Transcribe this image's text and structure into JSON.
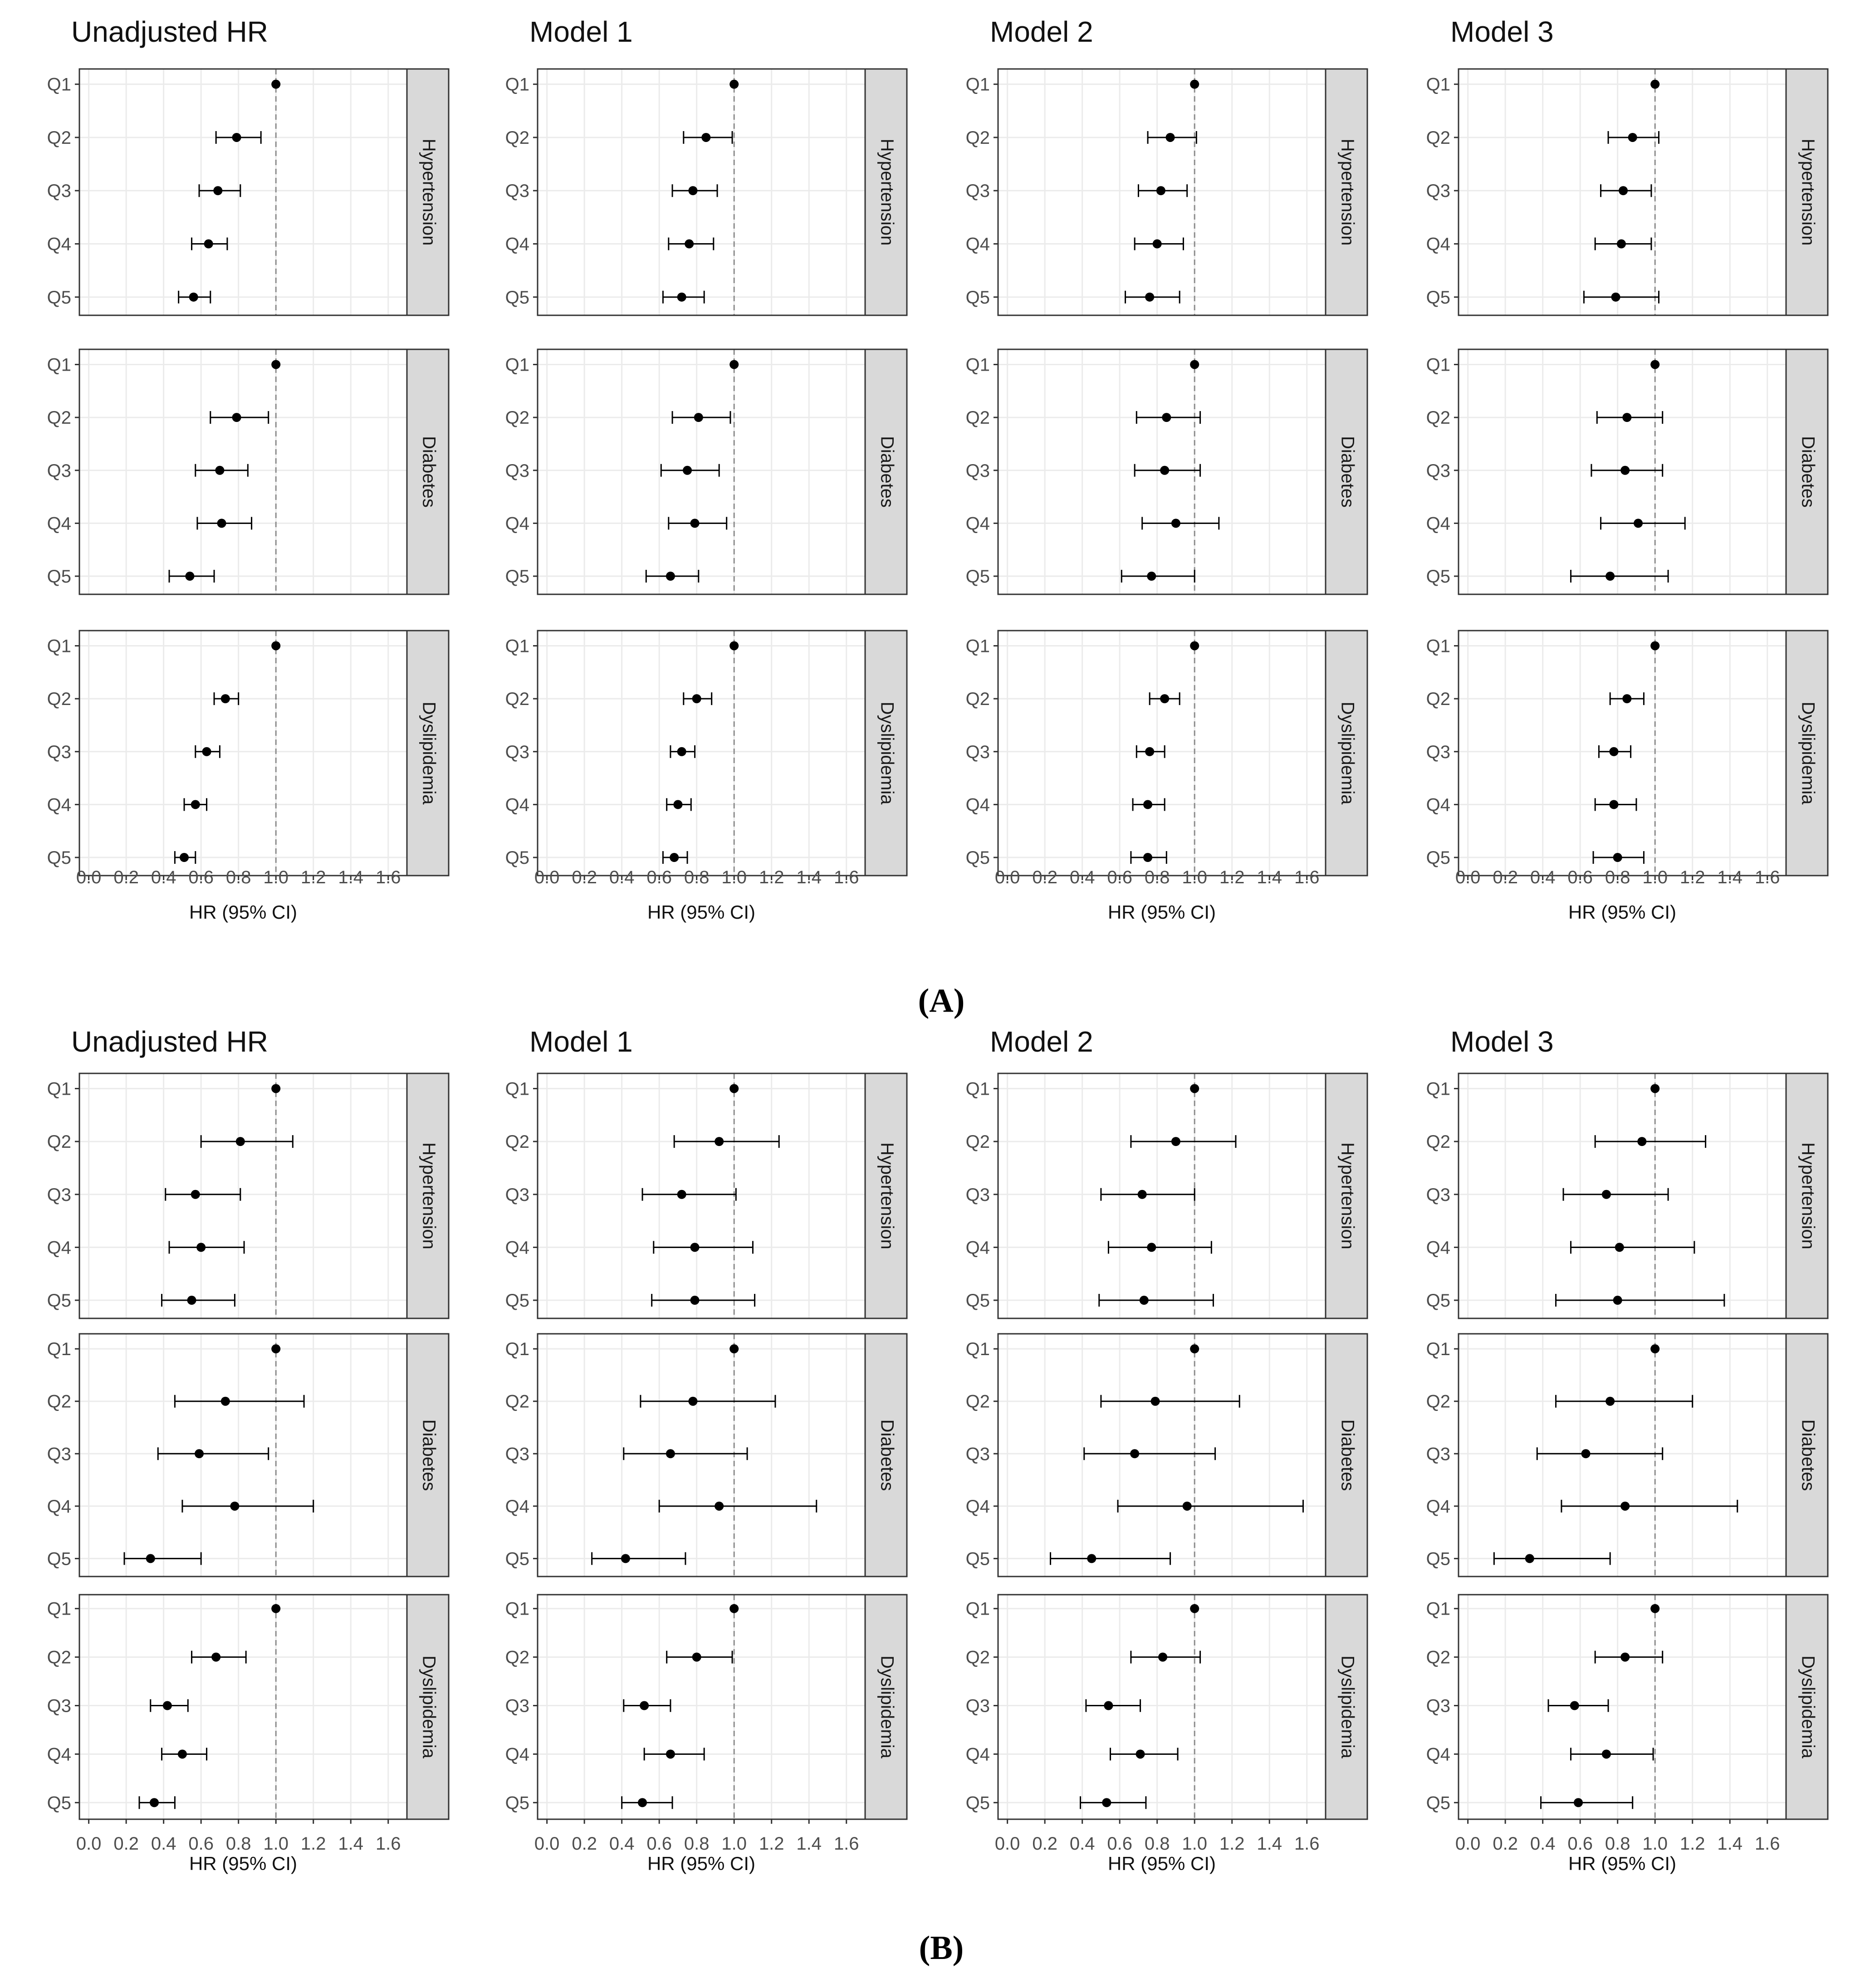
{
  "figure": {
    "panel_labels": [
      "(A)",
      "(B)"
    ],
    "column_titles": [
      "Unadjusted HR",
      "Model 1",
      "Model 2",
      "Model 3"
    ],
    "row_strips": [
      "Hypertension",
      "Diabetes",
      "Dyslipidemia"
    ],
    "xlabel": "HR (95% CI)",
    "y_categories": [
      "Q1",
      "Q2",
      "Q3",
      "Q4",
      "Q5"
    ],
    "x_ticks": [
      "0.0",
      "0.2",
      "0.4",
      "0.6",
      "0.8",
      "1.0",
      "1.2",
      "1.4",
      "1.6"
    ],
    "colors": {
      "strip_bg": "#d9d9d9",
      "grid": "#ebebeb",
      "point": "#000000",
      "reference_line": "#8c8c8c"
    }
  },
  "chart_data": [
    {
      "panel": "(A)",
      "type": "scatter",
      "subtype": "forest-plot with 95% CI error bars",
      "xlabel": "HR (95% CI)",
      "xlim": [
        -0.05,
        1.7
      ],
      "reference_line_x": 1.0,
      "categories": [
        "Q1",
        "Q2",
        "Q3",
        "Q4",
        "Q5"
      ],
      "columns": [
        {
          "title": "Unadjusted HR",
          "rows": [
            {
              "strip": "Hypertension",
              "hr": [
                1.0,
                0.79,
                0.69,
                0.64,
                0.56
              ],
              "lo": [
                1.0,
                0.68,
                0.59,
                0.55,
                0.48
              ],
              "hi": [
                1.0,
                0.92,
                0.81,
                0.74,
                0.65
              ]
            },
            {
              "strip": "Diabetes",
              "hr": [
                1.0,
                0.79,
                0.7,
                0.71,
                0.54
              ],
              "lo": [
                1.0,
                0.65,
                0.57,
                0.58,
                0.43
              ],
              "hi": [
                1.0,
                0.96,
                0.85,
                0.87,
                0.67
              ]
            },
            {
              "strip": "Dyslipidemia",
              "hr": [
                1.0,
                0.73,
                0.63,
                0.57,
                0.51
              ],
              "lo": [
                1.0,
                0.67,
                0.57,
                0.51,
                0.46
              ],
              "hi": [
                1.0,
                0.8,
                0.7,
                0.63,
                0.57
              ]
            }
          ]
        },
        {
          "title": "Model 1",
          "rows": [
            {
              "strip": "Hypertension",
              "hr": [
                1.0,
                0.85,
                0.78,
                0.76,
                0.72
              ],
              "lo": [
                1.0,
                0.73,
                0.67,
                0.65,
                0.62
              ],
              "hi": [
                1.0,
                0.99,
                0.91,
                0.89,
                0.84
              ]
            },
            {
              "strip": "Diabetes",
              "hr": [
                1.0,
                0.81,
                0.75,
                0.79,
                0.66
              ],
              "lo": [
                1.0,
                0.67,
                0.61,
                0.65,
                0.53
              ],
              "hi": [
                1.0,
                0.98,
                0.92,
                0.96,
                0.81
              ]
            },
            {
              "strip": "Dyslipidemia",
              "hr": [
                1.0,
                0.8,
                0.72,
                0.7,
                0.68
              ],
              "lo": [
                1.0,
                0.73,
                0.66,
                0.64,
                0.62
              ],
              "hi": [
                1.0,
                0.88,
                0.79,
                0.77,
                0.75
              ]
            }
          ]
        },
        {
          "title": "Model 2",
          "rows": [
            {
              "strip": "Hypertension",
              "hr": [
                1.0,
                0.87,
                0.82,
                0.8,
                0.76
              ],
              "lo": [
                1.0,
                0.75,
                0.7,
                0.68,
                0.63
              ],
              "hi": [
                1.0,
                1.01,
                0.96,
                0.94,
                0.92
              ]
            },
            {
              "strip": "Diabetes",
              "hr": [
                1.0,
                0.85,
                0.84,
                0.9,
                0.77
              ],
              "lo": [
                1.0,
                0.69,
                0.68,
                0.72,
                0.61
              ],
              "hi": [
                1.0,
                1.03,
                1.03,
                1.13,
                1.0
              ]
            },
            {
              "strip": "Dyslipidemia",
              "hr": [
                1.0,
                0.84,
                0.76,
                0.75,
                0.75
              ],
              "lo": [
                1.0,
                0.76,
                0.69,
                0.67,
                0.66
              ],
              "hi": [
                1.0,
                0.92,
                0.84,
                0.84,
                0.85
              ]
            }
          ]
        },
        {
          "title": "Model 3",
          "rows": [
            {
              "strip": "Hypertension",
              "hr": [
                1.0,
                0.88,
                0.83,
                0.82,
                0.79
              ],
              "lo": [
                1.0,
                0.75,
                0.71,
                0.68,
                0.62
              ],
              "hi": [
                1.0,
                1.02,
                0.98,
                0.98,
                1.02
              ]
            },
            {
              "strip": "Diabetes",
              "hr": [
                1.0,
                0.85,
                0.84,
                0.91,
                0.76
              ],
              "lo": [
                1.0,
                0.69,
                0.66,
                0.71,
                0.55
              ],
              "hi": [
                1.0,
                1.04,
                1.04,
                1.16,
                1.07
              ]
            },
            {
              "strip": "Dyslipidemia",
              "hr": [
                1.0,
                0.85,
                0.78,
                0.78,
                0.8
              ],
              "lo": [
                1.0,
                0.76,
                0.7,
                0.68,
                0.67
              ],
              "hi": [
                1.0,
                0.94,
                0.87,
                0.9,
                0.94
              ]
            }
          ]
        }
      ]
    },
    {
      "panel": "(B)",
      "type": "scatter",
      "subtype": "forest-plot with 95% CI error bars",
      "xlabel": "HR (95% CI)",
      "xlim": [
        -0.05,
        1.7
      ],
      "reference_line_x": 1.0,
      "categories": [
        "Q1",
        "Q2",
        "Q3",
        "Q4",
        "Q5"
      ],
      "columns": [
        {
          "title": "Unadjusted HR",
          "rows": [
            {
              "strip": "Hypertension",
              "hr": [
                1.0,
                0.81,
                0.57,
                0.6,
                0.55
              ],
              "lo": [
                1.0,
                0.6,
                0.41,
                0.43,
                0.39
              ],
              "hi": [
                1.0,
                1.09,
                0.81,
                0.83,
                0.78
              ]
            },
            {
              "strip": "Diabetes",
              "hr": [
                1.0,
                0.73,
                0.59,
                0.78,
                0.33
              ],
              "lo": [
                1.0,
                0.46,
                0.37,
                0.5,
                0.19
              ],
              "hi": [
                1.0,
                1.15,
                0.96,
                1.2,
                0.6
              ]
            },
            {
              "strip": "Dyslipidemia",
              "hr": [
                1.0,
                0.68,
                0.42,
                0.5,
                0.35
              ],
              "lo": [
                1.0,
                0.55,
                0.33,
                0.39,
                0.27
              ],
              "hi": [
                1.0,
                0.84,
                0.53,
                0.63,
                0.46
              ]
            }
          ]
        },
        {
          "title": "Model 1",
          "rows": [
            {
              "strip": "Hypertension",
              "hr": [
                1.0,
                0.92,
                0.72,
                0.79,
                0.79
              ],
              "lo": [
                1.0,
                0.68,
                0.51,
                0.57,
                0.56
              ],
              "hi": [
                1.0,
                1.24,
                1.01,
                1.1,
                1.11
              ]
            },
            {
              "strip": "Diabetes",
              "hr": [
                1.0,
                0.78,
                0.66,
                0.92,
                0.42
              ],
              "lo": [
                1.0,
                0.5,
                0.41,
                0.6,
                0.24
              ],
              "hi": [
                1.0,
                1.22,
                1.07,
                1.44,
                0.74
              ]
            },
            {
              "strip": "Dyslipidemia",
              "hr": [
                1.0,
                0.8,
                0.52,
                0.66,
                0.51
              ],
              "lo": [
                1.0,
                0.64,
                0.41,
                0.52,
                0.4
              ],
              "hi": [
                1.0,
                0.99,
                0.66,
                0.84,
                0.67
              ]
            }
          ]
        },
        {
          "title": "Model 2",
          "rows": [
            {
              "strip": "Hypertension",
              "hr": [
                1.0,
                0.9,
                0.72,
                0.77,
                0.73
              ],
              "lo": [
                1.0,
                0.66,
                0.5,
                0.54,
                0.49
              ],
              "hi": [
                1.0,
                1.22,
                1.0,
                1.09,
                1.1
              ]
            },
            {
              "strip": "Diabetes",
              "hr": [
                1.0,
                0.79,
                0.68,
                0.96,
                0.45
              ],
              "lo": [
                1.0,
                0.5,
                0.41,
                0.59,
                0.23
              ],
              "hi": [
                1.0,
                1.24,
                1.11,
                1.58,
                0.87
              ]
            },
            {
              "strip": "Dyslipidemia",
              "hr": [
                1.0,
                0.83,
                0.54,
                0.71,
                0.53
              ],
              "lo": [
                1.0,
                0.66,
                0.42,
                0.55,
                0.39
              ],
              "hi": [
                1.0,
                1.03,
                0.71,
                0.91,
                0.74
              ]
            }
          ]
        },
        {
          "title": "Model 3",
          "rows": [
            {
              "strip": "Hypertension",
              "hr": [
                1.0,
                0.93,
                0.74,
                0.81,
                0.8
              ],
              "lo": [
                1.0,
                0.68,
                0.51,
                0.55,
                0.47
              ],
              "hi": [
                1.0,
                1.27,
                1.07,
                1.21,
                1.37
              ]
            },
            {
              "strip": "Diabetes",
              "hr": [
                1.0,
                0.76,
                0.63,
                0.84,
                0.33
              ],
              "lo": [
                1.0,
                0.47,
                0.37,
                0.5,
                0.14
              ],
              "hi": [
                1.0,
                1.2,
                1.04,
                1.44,
                0.76
              ]
            },
            {
              "strip": "Dyslipidemia",
              "hr": [
                1.0,
                0.84,
                0.57,
                0.74,
                0.59
              ],
              "lo": [
                1.0,
                0.68,
                0.43,
                0.55,
                0.39
              ],
              "hi": [
                1.0,
                1.04,
                0.75,
                0.99,
                0.88
              ]
            }
          ]
        }
      ]
    }
  ]
}
